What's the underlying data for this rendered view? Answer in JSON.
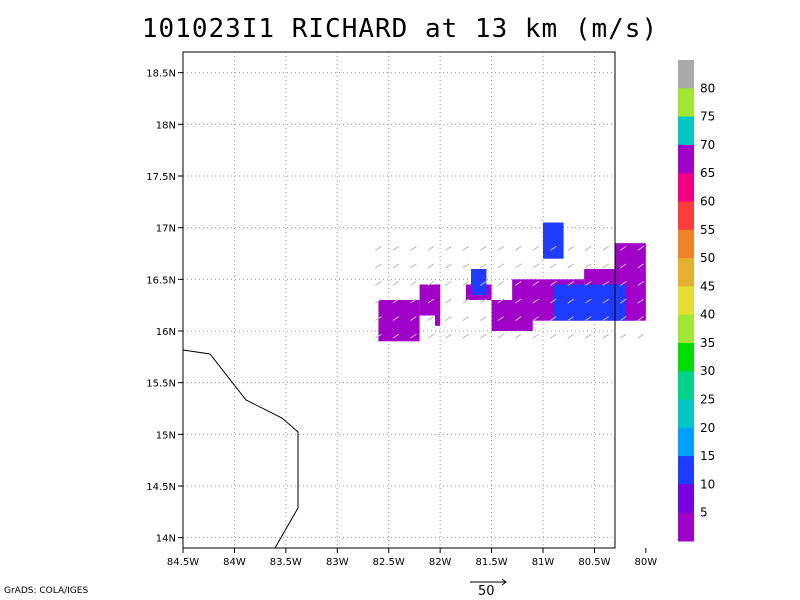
{
  "chart_data": {
    "type": "heatmap",
    "title": "101023I1 RICHARD at 13 km (m/s)",
    "x_axis": {
      "ticks": [
        "84.5W",
        "84W",
        "83.5W",
        "83W",
        "82.5W",
        "82W",
        "81.5W",
        "81W",
        "80.5W",
        "80W"
      ],
      "range_lon": [
        -84.5,
        -80.3
      ]
    },
    "y_axis": {
      "ticks": [
        "14N",
        "14.5N",
        "15N",
        "15.5N",
        "16N",
        "16.5N",
        "17N",
        "17.5N",
        "18N",
        "18.5N"
      ],
      "range_lat": [
        13.9,
        18.7
      ]
    },
    "grid": true,
    "colorbar": {
      "labels": [
        "5",
        "10",
        "15",
        "20",
        "25",
        "30",
        "35",
        "40",
        "45",
        "50",
        "55",
        "60",
        "65",
        "70",
        "75",
        "80"
      ],
      "colors": [
        "#a000c8",
        "#7800dc",
        "#1e3cff",
        "#00a0ff",
        "#00c8c8",
        "#00d28c",
        "#00dc00",
        "#a0e632",
        "#e6dc32",
        "#e6af2d",
        "#f08228",
        "#fa3c3c",
        "#f00082",
        "#a000c8",
        "#00c8c8",
        "#a0e632",
        "#aaaaaa"
      ]
    },
    "wind_regions": [
      {
        "level": "5-10",
        "color": "#a000c8",
        "cells": [
          [
            -82.6,
            16.3,
            -82.2,
            15.9
          ],
          [
            -82.2,
            16.45,
            -82.0,
            16.15
          ],
          [
            -82.05,
            16.15,
            -82.0,
            16.05
          ],
          [
            -81.75,
            16.45,
            -81.5,
            16.3
          ],
          [
            -81.5,
            16.3,
            -81.1,
            16.0
          ],
          [
            -81.3,
            16.5,
            -80.6,
            16.1
          ],
          [
            -80.6,
            16.6,
            -80.1,
            16.1
          ],
          [
            -80.3,
            16.85,
            -80.0,
            16.1
          ]
        ]
      },
      {
        "level": "10-15",
        "color": "#1e3cff",
        "cells": [
          [
            -81.7,
            16.6,
            -81.55,
            16.35
          ],
          [
            -81.0,
            17.05,
            -80.8,
            16.7
          ],
          [
            -80.9,
            16.45,
            -80.2,
            16.1
          ]
        ]
      }
    ],
    "coastline": "Honduras/Nicaragua coast (left edge)",
    "vector_scale": "50"
  },
  "credit": "GrADS: COLA/IGES"
}
